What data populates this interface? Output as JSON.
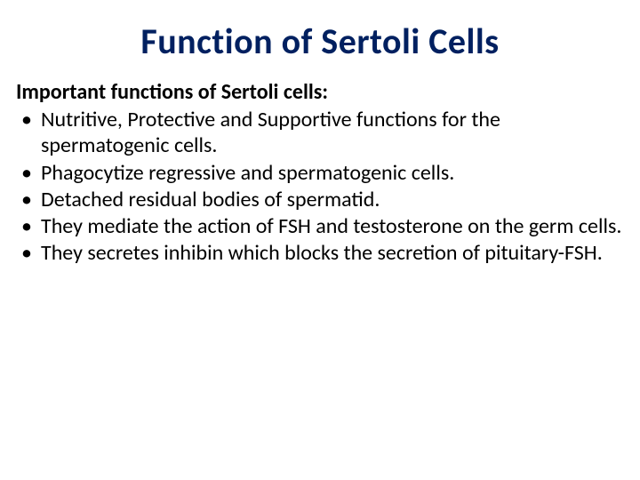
{
  "title": {
    "text": "Function of Sertoli Cells",
    "fontsize": 40,
    "color": "#002060"
  },
  "intro": {
    "text": "Important functions of Sertoli cells:",
    "fontsize": 24,
    "color": "#000000"
  },
  "bullets": {
    "fontsize": 24,
    "color": "#000000",
    "items": [
      "Nutritive, Protective and Supportive functions for the spermatogenic cells.",
      " Phagocytize regressive and spermatogenic cells.",
      "Detached residual bodies of spermatid.",
      "They mediate the action of FSH and testosterone on the germ cells.",
      "They secretes inhibin which blocks the secretion of pituitary-FSH."
    ]
  }
}
